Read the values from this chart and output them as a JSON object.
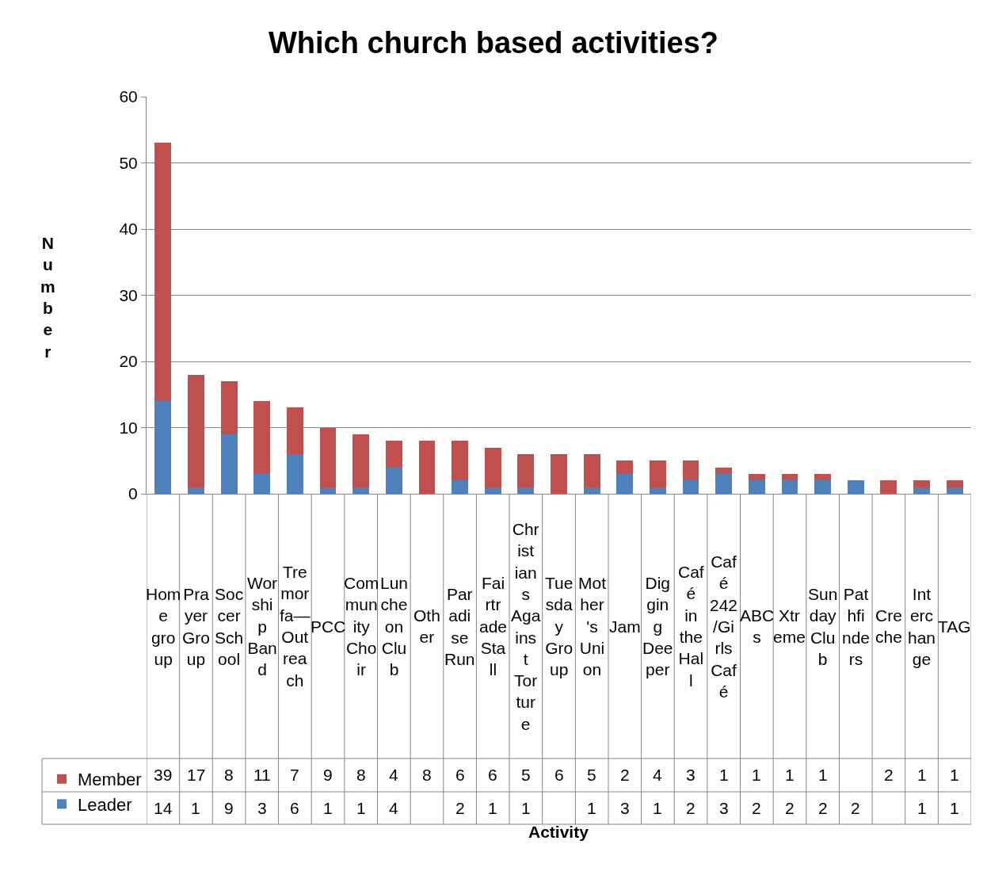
{
  "chart_data": {
    "type": "bar",
    "title": "Which church based activities?",
    "ylabel": "Number",
    "annotations": [
      "Activity"
    ],
    "categories": [
      "Home group",
      "Prayer Group",
      "Soccer School",
      "Worship Band",
      "Tremorfa—Outreach",
      "PCC",
      "Community Choir",
      "Luncheon Club",
      "Other",
      "Paradise Run",
      "Fairtrade Stall",
      "Christians Against Torture",
      "Tuesday Group",
      "Mother's Union",
      "Jam",
      "Digging Deeper",
      "Café in the Hall",
      "Café 242/Girls Café",
      "ABCs",
      "Xtreme",
      "Sunday Club",
      "Pathfinders",
      "Creche",
      "Interchange",
      "TAG"
    ],
    "stacked": true,
    "series": [
      {
        "name": "Leader",
        "color": "#4f81bd",
        "values": [
          14,
          1,
          9,
          3,
          6,
          1,
          1,
          4,
          null,
          2,
          1,
          1,
          null,
          1,
          3,
          1,
          2,
          3,
          2,
          2,
          2,
          2,
          null,
          1,
          1
        ]
      },
      {
        "name": "Member",
        "color": "#c0504d",
        "values": [
          39,
          17,
          8,
          11,
          7,
          9,
          8,
          4,
          8,
          6,
          6,
          5,
          6,
          5,
          2,
          4,
          3,
          1,
          1,
          1,
          1,
          null,
          2,
          1,
          1
        ]
      }
    ],
    "ylim": [
      0,
      60
    ],
    "yticks": [
      0,
      10,
      20,
      30,
      40,
      50,
      60
    ],
    "grid": "y",
    "legend": "bottom",
    "data_labels": true
  }
}
